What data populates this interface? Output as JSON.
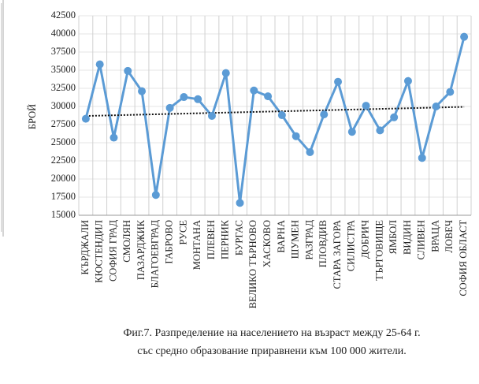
{
  "chart_data": {
    "type": "line",
    "y_label": "БРОЙ",
    "caption": [
      "Фиг.7. Разпределение на населението на възраст между 25-64 г.",
      "със средно образование приравнени към 100 000 жители."
    ],
    "categories": [
      "КЪРДЖАЛИ",
      "КЮСТЕНДИЛ",
      "СОФИЯ ГРАД",
      "СМОЛЯН",
      "ПАЗАРДЖИК",
      "БЛАГОЕВГРАД",
      "ГАБРОВО",
      "РУСЕ",
      "МОНТАНА",
      "ПЛЕВЕН",
      "ПЕРНИК",
      "БУРГАС",
      "ВЕЛИКО ТЪРНОВО",
      "ХАСКОВО",
      "ВАРНА",
      "ШУМЕН",
      "РАЗГРАД",
      "ПЛОВДИВ",
      "СТАРА ЗАГОРА",
      "СИЛИСТРА",
      "ДОБРИЧ",
      "ТЪРГОВИЩЕ",
      "ЯМБОЛ",
      "ВИДИН",
      "СЛИВЕН",
      "ВРАЦА",
      "ЛОВЕЧ",
      "СОФИЯ ОБЛАСТ"
    ],
    "values": [
      28300,
      35800,
      25700,
      34900,
      32100,
      17800,
      29800,
      31300,
      31000,
      28700,
      34600,
      16700,
      32200,
      31400,
      28800,
      25900,
      23700,
      28900,
      33400,
      26500,
      30100,
      26700,
      28500,
      33500,
      22900,
      30000,
      32000,
      39600
    ],
    "color": "#5b9bd5",
    "trendline": true,
    "ylim": [
      15000,
      42500
    ],
    "yticks": [
      15000,
      17500,
      20000,
      22500,
      25000,
      27500,
      30000,
      32500,
      35000,
      37500,
      40000,
      42500
    ],
    "grid": true
  }
}
